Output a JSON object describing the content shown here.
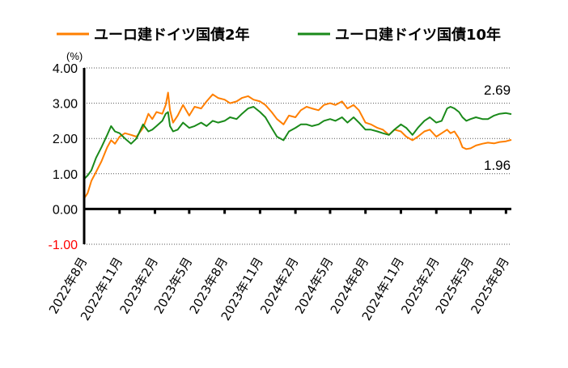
{
  "chart_data": {
    "type": "line",
    "unit_label": "(%)",
    "ylim": [
      -1.0,
      4.0
    ],
    "y_ticks": [
      "4.00",
      "3.00",
      "2.00",
      "1.00",
      "0.00",
      "-1.00"
    ],
    "y_tick_values": [
      4,
      3,
      2,
      1,
      0,
      -1
    ],
    "negative_tick_color": "#ff0000",
    "x_ticks": [
      "2022年8月",
      "2022年11月",
      "2023年2月",
      "2023年5月",
      "2023年8月",
      "2023年11月",
      "2024年2月",
      "2024年5月",
      "2024年8月",
      "2024年11月",
      "2025年2月",
      "2025年5月",
      "2025年8月"
    ],
    "x_tick_values": [
      "2022-08",
      "2022-11",
      "2023-02",
      "2023-05",
      "2023-08",
      "2023-11",
      "2024-02",
      "2024-05",
      "2024-08",
      "2024-11",
      "2025-02",
      "2025-05",
      "2025-08"
    ],
    "legend_position": "top",
    "grid": "horizontal-dotted",
    "series": [
      {
        "name": "ユーロ建ドイツ国債2年",
        "color": "#ff7f00",
        "end_label": "1.96",
        "points": [
          [
            "2022-08-01",
            0.3
          ],
          [
            "2022-08-10",
            0.45
          ],
          [
            "2022-08-20",
            0.8
          ],
          [
            "2022-09-01",
            1.05
          ],
          [
            "2022-09-15",
            1.35
          ],
          [
            "2022-09-30",
            1.75
          ],
          [
            "2022-10-10",
            1.95
          ],
          [
            "2022-10-20",
            1.85
          ],
          [
            "2022-11-01",
            2.05
          ],
          [
            "2022-11-15",
            2.15
          ],
          [
            "2022-12-01",
            2.1
          ],
          [
            "2022-12-15",
            2.05
          ],
          [
            "2023-01-01",
            2.3
          ],
          [
            "2023-01-15",
            2.7
          ],
          [
            "2023-01-25",
            2.55
          ],
          [
            "2023-02-05",
            2.75
          ],
          [
            "2023-02-20",
            2.7
          ],
          [
            "2023-03-01",
            2.95
          ],
          [
            "2023-03-07",
            3.3
          ],
          [
            "2023-03-12",
            2.8
          ],
          [
            "2023-03-20",
            2.45
          ],
          [
            "2023-04-01",
            2.65
          ],
          [
            "2023-04-15",
            2.95
          ],
          [
            "2023-05-01",
            2.65
          ],
          [
            "2023-05-15",
            2.9
          ],
          [
            "2023-06-01",
            2.85
          ],
          [
            "2023-06-15",
            3.05
          ],
          [
            "2023-07-01",
            3.25
          ],
          [
            "2023-07-15",
            3.15
          ],
          [
            "2023-08-01",
            3.1
          ],
          [
            "2023-08-15",
            3.0
          ],
          [
            "2023-09-01",
            3.05
          ],
          [
            "2023-09-15",
            3.15
          ],
          [
            "2023-10-01",
            3.2
          ],
          [
            "2023-10-15",
            3.1
          ],
          [
            "2023-11-01",
            3.05
          ],
          [
            "2023-11-15",
            2.95
          ],
          [
            "2023-12-01",
            2.75
          ],
          [
            "2023-12-15",
            2.55
          ],
          [
            "2024-01-01",
            2.4
          ],
          [
            "2024-01-15",
            2.65
          ],
          [
            "2024-02-01",
            2.6
          ],
          [
            "2024-02-15",
            2.8
          ],
          [
            "2024-03-01",
            2.9
          ],
          [
            "2024-03-15",
            2.85
          ],
          [
            "2024-04-01",
            2.8
          ],
          [
            "2024-04-15",
            2.95
          ],
          [
            "2024-05-01",
            3.0
          ],
          [
            "2024-05-15",
            2.95
          ],
          [
            "2024-06-01",
            3.05
          ],
          [
            "2024-06-15",
            2.85
          ],
          [
            "2024-07-01",
            2.95
          ],
          [
            "2024-07-15",
            2.8
          ],
          [
            "2024-08-01",
            2.45
          ],
          [
            "2024-08-15",
            2.4
          ],
          [
            "2024-09-01",
            2.3
          ],
          [
            "2024-09-15",
            2.25
          ],
          [
            "2024-10-01",
            2.1
          ],
          [
            "2024-10-15",
            2.25
          ],
          [
            "2024-11-01",
            2.2
          ],
          [
            "2024-11-15",
            2.05
          ],
          [
            "2024-12-01",
            1.95
          ],
          [
            "2024-12-15",
            2.05
          ],
          [
            "2025-01-01",
            2.2
          ],
          [
            "2025-01-15",
            2.25
          ],
          [
            "2025-02-01",
            2.05
          ],
          [
            "2025-02-15",
            2.15
          ],
          [
            "2025-03-01",
            2.25
          ],
          [
            "2025-03-10",
            2.15
          ],
          [
            "2025-03-20",
            2.2
          ],
          [
            "2025-04-01",
            2.0
          ],
          [
            "2025-04-10",
            1.75
          ],
          [
            "2025-04-20",
            1.7
          ],
          [
            "2025-05-01",
            1.72
          ],
          [
            "2025-05-15",
            1.8
          ],
          [
            "2025-06-01",
            1.85
          ],
          [
            "2025-06-15",
            1.88
          ],
          [
            "2025-07-01",
            1.86
          ],
          [
            "2025-07-15",
            1.9
          ],
          [
            "2025-08-01",
            1.92
          ],
          [
            "2025-08-15",
            1.96
          ]
        ]
      },
      {
        "name": "ユーロ建ドイツ国債10年",
        "color": "#1a8a1a",
        "end_label": "2.69",
        "points": [
          [
            "2022-08-01",
            0.85
          ],
          [
            "2022-08-10",
            0.95
          ],
          [
            "2022-08-20",
            1.1
          ],
          [
            "2022-09-01",
            1.45
          ],
          [
            "2022-09-15",
            1.75
          ],
          [
            "2022-09-30",
            2.1
          ],
          [
            "2022-10-10",
            2.35
          ],
          [
            "2022-10-20",
            2.2
          ],
          [
            "2022-11-01",
            2.15
          ],
          [
            "2022-11-15",
            2.0
          ],
          [
            "2022-12-01",
            1.85
          ],
          [
            "2022-12-15",
            2.0
          ],
          [
            "2023-01-01",
            2.4
          ],
          [
            "2023-01-15",
            2.2
          ],
          [
            "2023-01-25",
            2.25
          ],
          [
            "2023-02-05",
            2.35
          ],
          [
            "2023-02-20",
            2.5
          ],
          [
            "2023-03-01",
            2.7
          ],
          [
            "2023-03-07",
            2.75
          ],
          [
            "2023-03-12",
            2.35
          ],
          [
            "2023-03-20",
            2.2
          ],
          [
            "2023-04-01",
            2.25
          ],
          [
            "2023-04-15",
            2.45
          ],
          [
            "2023-05-01",
            2.3
          ],
          [
            "2023-05-15",
            2.35
          ],
          [
            "2023-06-01",
            2.45
          ],
          [
            "2023-06-15",
            2.35
          ],
          [
            "2023-07-01",
            2.5
          ],
          [
            "2023-07-15",
            2.45
          ],
          [
            "2023-08-01",
            2.5
          ],
          [
            "2023-08-15",
            2.6
          ],
          [
            "2023-09-01",
            2.55
          ],
          [
            "2023-09-15",
            2.7
          ],
          [
            "2023-10-01",
            2.85
          ],
          [
            "2023-10-15",
            2.9
          ],
          [
            "2023-11-01",
            2.75
          ],
          [
            "2023-11-15",
            2.6
          ],
          [
            "2023-12-01",
            2.3
          ],
          [
            "2023-12-15",
            2.05
          ],
          [
            "2024-01-01",
            1.95
          ],
          [
            "2024-01-15",
            2.2
          ],
          [
            "2024-02-01",
            2.3
          ],
          [
            "2024-02-15",
            2.4
          ],
          [
            "2024-03-01",
            2.4
          ],
          [
            "2024-03-15",
            2.35
          ],
          [
            "2024-04-01",
            2.4
          ],
          [
            "2024-04-15",
            2.5
          ],
          [
            "2024-05-01",
            2.55
          ],
          [
            "2024-05-15",
            2.5
          ],
          [
            "2024-06-01",
            2.6
          ],
          [
            "2024-06-15",
            2.45
          ],
          [
            "2024-07-01",
            2.6
          ],
          [
            "2024-07-15",
            2.45
          ],
          [
            "2024-08-01",
            2.25
          ],
          [
            "2024-08-15",
            2.25
          ],
          [
            "2024-09-01",
            2.2
          ],
          [
            "2024-09-15",
            2.15
          ],
          [
            "2024-10-01",
            2.1
          ],
          [
            "2024-10-15",
            2.25
          ],
          [
            "2024-11-01",
            2.4
          ],
          [
            "2024-11-15",
            2.3
          ],
          [
            "2024-12-01",
            2.1
          ],
          [
            "2024-12-15",
            2.3
          ],
          [
            "2025-01-01",
            2.5
          ],
          [
            "2025-01-15",
            2.6
          ],
          [
            "2025-02-01",
            2.45
          ],
          [
            "2025-02-15",
            2.5
          ],
          [
            "2025-03-01",
            2.85
          ],
          [
            "2025-03-10",
            2.9
          ],
          [
            "2025-03-20",
            2.85
          ],
          [
            "2025-04-01",
            2.75
          ],
          [
            "2025-04-10",
            2.6
          ],
          [
            "2025-04-20",
            2.5
          ],
          [
            "2025-05-01",
            2.55
          ],
          [
            "2025-05-15",
            2.6
          ],
          [
            "2025-06-01",
            2.55
          ],
          [
            "2025-06-15",
            2.55
          ],
          [
            "2025-07-01",
            2.65
          ],
          [
            "2025-07-15",
            2.7
          ],
          [
            "2025-08-01",
            2.72
          ],
          [
            "2025-08-15",
            2.69
          ]
        ]
      }
    ]
  }
}
